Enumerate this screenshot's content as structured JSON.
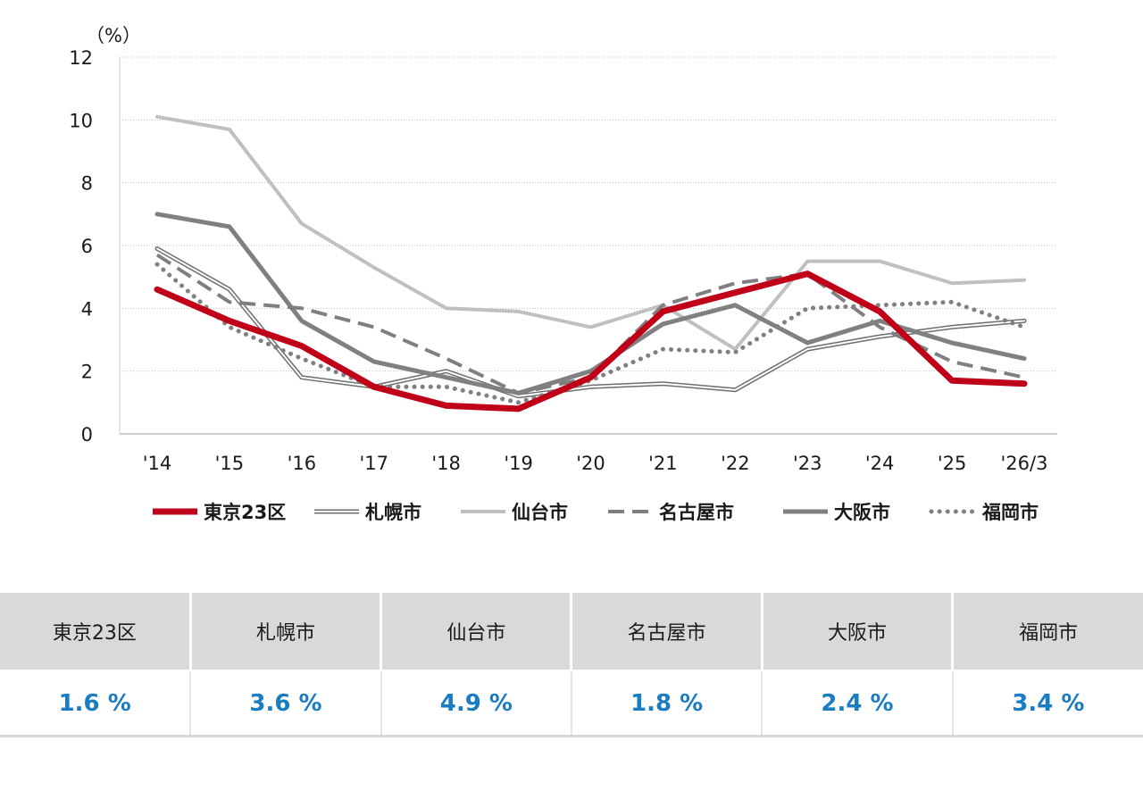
{
  "chart_data": {
    "type": "line",
    "unit_label": "（%）",
    "categories": [
      "'14",
      "'15",
      "'16",
      "'17",
      "'18",
      "'19",
      "'20",
      "'21",
      "'22",
      "'23",
      "'24",
      "'25",
      "'26/3"
    ],
    "ylim": [
      0,
      12
    ],
    "yticks": [
      0,
      2,
      4,
      6,
      8,
      10,
      12
    ],
    "grid": true,
    "legend_position": "bottom",
    "series": [
      {
        "name": "札幌市",
        "style": "double",
        "color": "#6e6e6e",
        "values": [
          5.9,
          4.6,
          1.8,
          1.5,
          2.0,
          1.2,
          1.5,
          1.6,
          1.4,
          2.7,
          3.1,
          3.4,
          3.6
        ]
      },
      {
        "name": "仙台市",
        "style": "solid-light",
        "color": "#c0c0c0",
        "values": [
          10.1,
          9.7,
          6.7,
          5.3,
          4.0,
          3.9,
          3.4,
          4.1,
          2.7,
          5.5,
          5.5,
          4.8,
          4.9
        ]
      },
      {
        "name": "名古屋市",
        "style": "dashed",
        "color": "#7f7f7f",
        "values": [
          5.7,
          4.2,
          4.0,
          3.4,
          2.4,
          1.3,
          1.8,
          4.1,
          4.8,
          5.1,
          3.4,
          2.3,
          1.8
        ]
      },
      {
        "name": "大阪市",
        "style": "solid-dark",
        "color": "#808080",
        "values": [
          7.0,
          6.6,
          3.6,
          2.3,
          1.8,
          1.3,
          2.0,
          3.5,
          4.1,
          2.9,
          3.6,
          2.9,
          2.4
        ]
      },
      {
        "name": "福岡市",
        "style": "dotted",
        "color": "#808080",
        "values": [
          5.4,
          3.4,
          2.4,
          1.5,
          1.5,
          1.0,
          1.7,
          2.7,
          2.6,
          4.0,
          4.1,
          4.2,
          3.4
        ]
      },
      {
        "name": "東京23区",
        "style": "thick",
        "color": "#c00018",
        "values": [
          4.6,
          3.6,
          2.8,
          1.5,
          0.9,
          0.8,
          1.8,
          3.9,
          4.5,
          5.1,
          3.9,
          1.7,
          1.6
        ]
      }
    ],
    "legend_order": [
      "東京23区",
      "札幌市",
      "仙台市",
      "名古屋市",
      "大阪市",
      "福岡市"
    ]
  },
  "table": {
    "headers": [
      "東京23区",
      "札幌市",
      "仙台市",
      "名古屋市",
      "大阪市",
      "福岡市"
    ],
    "values": [
      "1.6 %",
      "3.6 %",
      "4.9 %",
      "1.8 %",
      "2.4 %",
      "3.4 %"
    ]
  }
}
